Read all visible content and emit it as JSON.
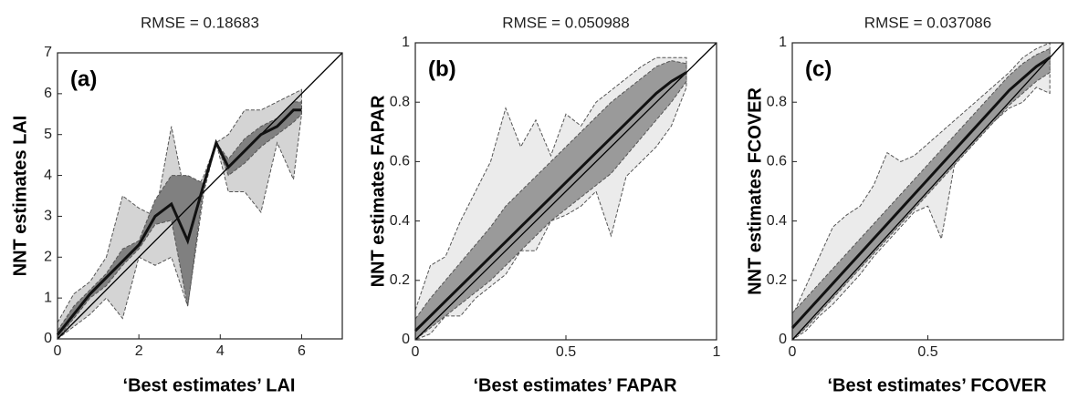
{
  "chart_data": [
    {
      "type": "band",
      "title": "RMSE = 0.18683",
      "panel_label": "(a)",
      "x_label": "‘Best estimates’ LAI",
      "y_label": "NNT estimates  LAI",
      "xlim": [
        0,
        7
      ],
      "ylim": [
        0,
        7
      ],
      "xticks": [
        0,
        2,
        4,
        6
      ],
      "yticks": [
        0,
        1,
        2,
        3,
        4,
        5,
        6,
        7
      ],
      "diagonal": true,
      "x": [
        0,
        0.4,
        0.8,
        1.2,
        1.6,
        2.0,
        2.4,
        2.8,
        3.2,
        3.6,
        3.9,
        4.2,
        4.6,
        5.0,
        5.4,
        5.8,
        6.0
      ],
      "bands": [
        {
          "color": "#d4d4d4",
          "upper": [
            0.4,
            1.1,
            1.4,
            2.0,
            3.5,
            3.2,
            3.0,
            5.2,
            3.2,
            4.0,
            4.8,
            5.0,
            5.6,
            5.6,
            5.8,
            6.0,
            6.1
          ],
          "lower": [
            0,
            0.3,
            0.6,
            1.0,
            0.5,
            2.0,
            1.8,
            2.0,
            0.8,
            3.6,
            4.8,
            3.6,
            3.6,
            3.1,
            4.8,
            3.9,
            5.5
          ]
        },
        {
          "color": "#808080",
          "upper": [
            0.2,
            0.8,
            1.2,
            1.6,
            2.2,
            2.4,
            3.4,
            4.0,
            4.0,
            3.8,
            4.8,
            4.4,
            4.9,
            5.2,
            5.4,
            5.8,
            5.8
          ],
          "lower": [
            0,
            0.5,
            1.0,
            1.3,
            1.8,
            2.2,
            2.8,
            2.9,
            0.8,
            3.8,
            4.8,
            4.0,
            4.3,
            4.7,
            5.0,
            5.3,
            5.5
          ]
        }
      ],
      "median": [
        0.1,
        0.6,
        1.1,
        1.5,
        1.9,
        2.3,
        3.0,
        3.3,
        2.4,
        3.8,
        4.8,
        4.2,
        4.6,
        5.0,
        5.2,
        5.6,
        5.6
      ]
    },
    {
      "type": "band",
      "title": "RMSE = 0.050988",
      "panel_label": "(b)",
      "x_label": "‘Best estimates’ FAPAR",
      "y_label": "NNT estimates  FAPAR",
      "xlim": [
        0,
        1
      ],
      "ylim": [
        0,
        1
      ],
      "xticks": [
        0,
        0.5,
        1
      ],
      "yticks": [
        0,
        0.2,
        0.4,
        0.6,
        0.8,
        1
      ],
      "diagonal": true,
      "x": [
        0,
        0.05,
        0.1,
        0.15,
        0.2,
        0.25,
        0.3,
        0.35,
        0.4,
        0.45,
        0.5,
        0.55,
        0.6,
        0.65,
        0.7,
        0.75,
        0.8,
        0.85,
        0.9
      ],
      "bands": [
        {
          "color": "#ebebeb",
          "upper": [
            0.1,
            0.25,
            0.28,
            0.4,
            0.5,
            0.6,
            0.78,
            0.65,
            0.74,
            0.62,
            0.76,
            0.72,
            0.8,
            0.84,
            0.88,
            0.92,
            0.95,
            0.95,
            0.95
          ],
          "lower": [
            0,
            0.02,
            0.08,
            0.08,
            0.14,
            0.18,
            0.22,
            0.3,
            0.3,
            0.4,
            0.42,
            0.45,
            0.5,
            0.35,
            0.55,
            0.6,
            0.65,
            0.72,
            0.85
          ]
        },
        {
          "color": "#9a9a9a",
          "upper": [
            0.07,
            0.14,
            0.2,
            0.26,
            0.32,
            0.38,
            0.45,
            0.5,
            0.55,
            0.6,
            0.65,
            0.7,
            0.75,
            0.8,
            0.84,
            0.88,
            0.92,
            0.94,
            0.93
          ],
          "lower": [
            0,
            0.04,
            0.08,
            0.12,
            0.16,
            0.2,
            0.25,
            0.3,
            0.35,
            0.4,
            0.44,
            0.48,
            0.52,
            0.56,
            0.62,
            0.68,
            0.74,
            0.8,
            0.87
          ]
        }
      ],
      "median": [
        0.03,
        0.08,
        0.13,
        0.18,
        0.23,
        0.28,
        0.33,
        0.38,
        0.43,
        0.48,
        0.53,
        0.58,
        0.63,
        0.68,
        0.73,
        0.78,
        0.83,
        0.87,
        0.9
      ]
    },
    {
      "type": "band",
      "title": "RMSE = 0.037086",
      "panel_label": "(c)",
      "x_label": "‘Best estimates’ FCOVER",
      "y_label": "NNT estimates  FCOVER",
      "xlim": [
        0,
        1
      ],
      "ylim": [
        0,
        1
      ],
      "xticks": [
        0,
        0.5
      ],
      "yticks": [
        0,
        0.2,
        0.4,
        0.6,
        0.8,
        1
      ],
      "diagonal": true,
      "x": [
        0,
        0.05,
        0.1,
        0.15,
        0.2,
        0.25,
        0.3,
        0.35,
        0.4,
        0.45,
        0.5,
        0.55,
        0.6,
        0.65,
        0.7,
        0.75,
        0.8,
        0.85,
        0.9,
        0.95
      ],
      "bands": [
        {
          "color": "#ebebeb",
          "upper": [
            0.08,
            0.18,
            0.28,
            0.38,
            0.42,
            0.45,
            0.52,
            0.63,
            0.6,
            0.62,
            0.66,
            0.7,
            0.74,
            0.78,
            0.82,
            0.86,
            0.9,
            0.95,
            0.98,
            1.0
          ],
          "lower": [
            0,
            0.03,
            0.08,
            0.12,
            0.17,
            0.22,
            0.28,
            0.33,
            0.38,
            0.43,
            0.45,
            0.34,
            0.6,
            0.66,
            0.7,
            0.74,
            0.78,
            0.8,
            0.85,
            0.83
          ]
        },
        {
          "color": "#9a9a9a",
          "upper": [
            0.09,
            0.14,
            0.19,
            0.24,
            0.29,
            0.34,
            0.39,
            0.44,
            0.49,
            0.54,
            0.59,
            0.64,
            0.69,
            0.74,
            0.79,
            0.84,
            0.89,
            0.93,
            0.96,
            0.98
          ],
          "lower": [
            0,
            0.04,
            0.09,
            0.14,
            0.19,
            0.24,
            0.29,
            0.34,
            0.39,
            0.44,
            0.49,
            0.54,
            0.59,
            0.64,
            0.69,
            0.74,
            0.79,
            0.83,
            0.87,
            0.9
          ]
        }
      ],
      "median": [
        0.04,
        0.09,
        0.14,
        0.19,
        0.24,
        0.29,
        0.34,
        0.39,
        0.44,
        0.49,
        0.54,
        0.59,
        0.64,
        0.69,
        0.74,
        0.79,
        0.84,
        0.88,
        0.92,
        0.95
      ]
    }
  ]
}
